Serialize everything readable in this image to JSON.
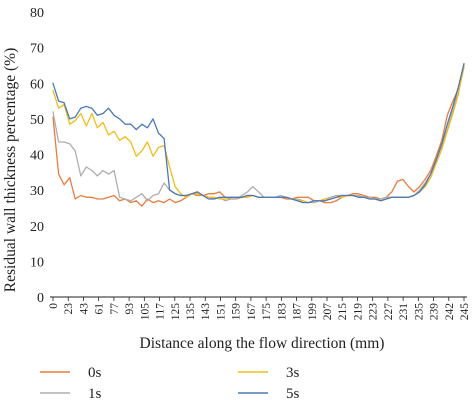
{
  "chart_data": {
    "type": "line",
    "title": "",
    "xlabel": "Distance along the flow direction (mm)",
    "ylabel": "Residual wall thickness percentage (%)",
    "ylim": [
      0,
      80
    ],
    "yticks": [
      0,
      10,
      20,
      30,
      40,
      50,
      60,
      70,
      80
    ],
    "x_tick_labels": [
      "0",
      "23",
      "43",
      "61",
      "77",
      "93",
      "105",
      "117",
      "125",
      "135",
      "143",
      "151",
      "159",
      "167",
      "175",
      "183",
      "187",
      "199",
      "207",
      "215",
      "219",
      "223",
      "227",
      "231",
      "235",
      "239",
      "242",
      "245"
    ],
    "grid": false,
    "legend_position": "bottom",
    "series": [
      {
        "name": "0s",
        "color": "#e87d3e",
        "values": [
          50.5,
          34.5,
          31.5,
          33.5,
          27.5,
          28.5,
          28.0,
          28.0,
          27.5,
          27.5,
          28.0,
          28.5,
          27.0,
          27.5,
          26.5,
          27.0,
          25.5,
          27.5,
          26.5,
          27.0,
          26.5,
          27.5,
          26.5,
          27.0,
          28.0,
          29.0,
          28.5,
          28.5,
          29.0,
          29.0,
          29.5,
          28.0,
          27.5,
          27.5,
          28.0,
          28.5,
          28.5,
          28.0,
          28.0,
          28.0,
          28.0,
          28.0,
          27.5,
          27.5,
          28.0,
          28.0,
          28.0,
          27.0,
          27.0,
          26.5,
          26.5,
          27.0,
          28.0,
          28.5,
          29.0,
          29.0,
          28.5,
          28.0,
          28.0,
          27.5,
          28.0,
          29.5,
          32.5,
          33.0,
          31.0,
          29.5,
          31.0,
          33.0,
          35.5,
          39.5,
          44.0,
          51.0,
          55.0,
          58.5,
          65.5
        ]
      },
      {
        "name": "1s",
        "color": "#aeaeae",
        "values": [
          52.0,
          43.5,
          43.5,
          43.0,
          41.0,
          34.0,
          36.5,
          35.5,
          34.0,
          35.5,
          34.5,
          35.5,
          28.0,
          27.5,
          27.0,
          28.0,
          29.0,
          27.0,
          28.5,
          29.0,
          32.0,
          30.0,
          29.0,
          28.5,
          28.5,
          29.0,
          29.5,
          28.5,
          28.0,
          27.5,
          28.0,
          27.0,
          27.5,
          27.5,
          28.5,
          29.5,
          31.0,
          29.5,
          28.0,
          28.0,
          28.0,
          28.5,
          28.0,
          27.5,
          27.5,
          27.0,
          26.5,
          26.5,
          27.0,
          27.5,
          28.0,
          28.5,
          28.5,
          28.5,
          28.5,
          28.5,
          28.0,
          28.0,
          27.5,
          27.5,
          28.0,
          28.0,
          28.0,
          28.0,
          28.0,
          28.5,
          30.0,
          32.0,
          34.5,
          38.5,
          42.5,
          47.0,
          52.5,
          57.5,
          64.5
        ]
      },
      {
        "name": "3s",
        "color": "#f0bd1b",
        "values": [
          58.0,
          53.0,
          54.0,
          48.5,
          49.5,
          51.5,
          48.0,
          51.5,
          47.5,
          49.0,
          45.5,
          46.5,
          44.0,
          45.0,
          43.5,
          39.5,
          41.0,
          43.5,
          39.5,
          42.0,
          42.5,
          36.5,
          31.0,
          29.0,
          28.0,
          29.0,
          29.0,
          28.5,
          28.0,
          28.0,
          27.5,
          27.5,
          28.0,
          28.0,
          28.0,
          28.0,
          28.5,
          28.0,
          28.0,
          28.0,
          28.0,
          28.0,
          28.0,
          27.5,
          27.0,
          27.0,
          26.5,
          27.0,
          27.0,
          27.5,
          27.5,
          28.0,
          28.0,
          28.5,
          28.5,
          28.0,
          28.0,
          27.5,
          27.5,
          27.0,
          27.5,
          28.0,
          28.0,
          28.0,
          28.0,
          28.5,
          29.5,
          31.0,
          33.5,
          37.5,
          41.5,
          46.5,
          51.5,
          57.0,
          65.0
        ]
      },
      {
        "name": "5s",
        "color": "#4d79b8",
        "values": [
          60.0,
          55.0,
          54.5,
          50.0,
          50.5,
          53.0,
          53.5,
          53.0,
          51.0,
          51.5,
          53.0,
          51.0,
          50.0,
          48.5,
          48.5,
          47.0,
          48.5,
          47.5,
          50.0,
          46.0,
          44.5,
          30.0,
          29.0,
          28.5,
          28.5,
          29.0,
          29.5,
          28.5,
          27.5,
          27.5,
          28.0,
          28.0,
          28.0,
          28.0,
          28.0,
          28.5,
          28.5,
          28.0,
          28.0,
          28.0,
          28.0,
          28.0,
          28.0,
          27.5,
          27.0,
          26.5,
          26.5,
          27.0,
          27.0,
          27.0,
          27.5,
          28.0,
          28.5,
          28.5,
          28.5,
          28.0,
          28.0,
          27.5,
          27.5,
          27.0,
          27.5,
          28.0,
          28.0,
          28.0,
          28.0,
          28.5,
          29.5,
          31.5,
          34.5,
          38.5,
          43.0,
          48.5,
          53.5,
          59.0,
          65.5
        ]
      }
    ]
  },
  "colors": {
    "axis": "#231f20",
    "text": "#231f20",
    "background": "#ffffff"
  }
}
